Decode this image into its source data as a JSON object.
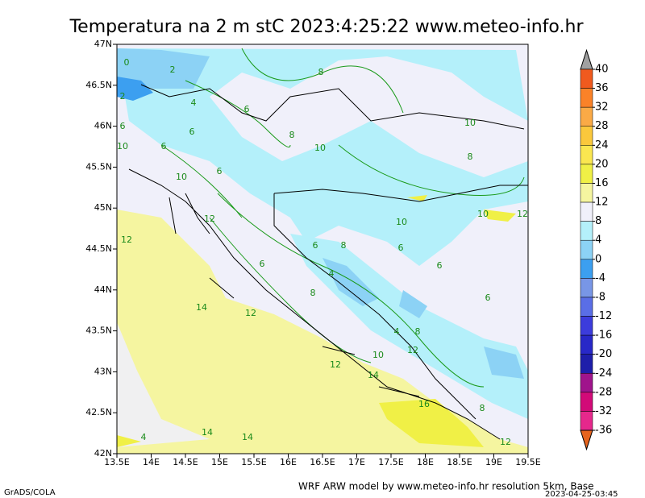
{
  "map": {
    "title": "Temperatura na 2 m stC 2023:4:25:22 www.meteo-info.hr",
    "lat_ticks": [
      "47N",
      "46.5N",
      "46N",
      "45.5N",
      "45N",
      "44.5N",
      "44N",
      "43.5N",
      "43N",
      "42.5N",
      "42N"
    ],
    "lon_ticks": [
      "13.5E",
      "14E",
      "14.5E",
      "15E",
      "15.5E",
      "16E",
      "16.5E",
      "17E",
      "17.5E",
      "18E",
      "18.5E",
      "19E",
      "19.5E"
    ],
    "colorbar": {
      "levels": [
        40,
        36,
        32,
        28,
        24,
        20,
        16,
        12,
        8,
        4,
        0,
        -4,
        -8,
        -12,
        -16,
        -20,
        -24,
        -28,
        -32,
        -36
      ],
      "colors": [
        "#a0a0a0",
        "#f05a1e",
        "#fa8228",
        "#faaa46",
        "#fac83c",
        "#fae650",
        "#f0f046",
        "#f5f5a0",
        "#f0f0fa",
        "#b4f0fa",
        "#8cd2f5",
        "#3c9ff0",
        "#7896e6",
        "#5a6ee6",
        "#3c3cdc",
        "#2828c8",
        "#1e1eaa",
        "#a0148c",
        "#d20a78",
        "#e6288c",
        "#e6641e"
      ]
    },
    "contour_labels": [
      "0",
      "2",
      "2",
      "4",
      "6",
      "6",
      "6",
      "6",
      "8",
      "10",
      "10",
      "6",
      "8",
      "10",
      "10",
      "8",
      "10",
      "12",
      "12",
      "12",
      "6",
      "8",
      "6",
      "4",
      "8",
      "6",
      "6",
      "4",
      "8",
      "12",
      "10",
      "12",
      "14",
      "16",
      "14",
      "14",
      "4",
      "12",
      "10",
      "8",
      "6",
      "14",
      "12"
    ],
    "footer_left": "GrADS/COLA",
    "footer_right": "WRF ARW model by www.meteo-info.hr resolution 5km, Base",
    "footer_date": "2023-04-25-03:45"
  }
}
